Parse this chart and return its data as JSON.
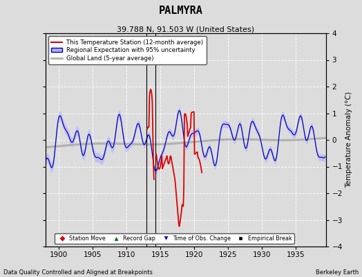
{
  "title": "PALMYRA",
  "subtitle": "39.788 N, 91.503 W (United States)",
  "xlabel_left": "Data Quality Controlled and Aligned at Breakpoints",
  "xlabel_right": "Berkeley Earth",
  "ylabel": "Temperature Anomaly (°C)",
  "xlim": [
    1898.0,
    1939.5
  ],
  "ylim": [
    -4,
    4
  ],
  "yticks": [
    -4,
    -3,
    -2,
    -1,
    0,
    1,
    2,
    3,
    4
  ],
  "xticks": [
    1900,
    1905,
    1910,
    1915,
    1920,
    1925,
    1930,
    1935
  ],
  "background_color": "#dcdcdc",
  "plot_bg_color": "#dcdcdc",
  "grid_color": "#ffffff",
  "station_line_color": "#dd0000",
  "regional_line_color": "#0000bb",
  "regional_fill_color": "#b0b0ff",
  "global_line_color": "#b0b0b0",
  "vertical_line_color": "#000000",
  "marker_record_gap_x": 1912.5,
  "marker_empirical_x": 1914.25,
  "vertical_lines": [
    1913.0,
    1914.25
  ],
  "seed": 42
}
